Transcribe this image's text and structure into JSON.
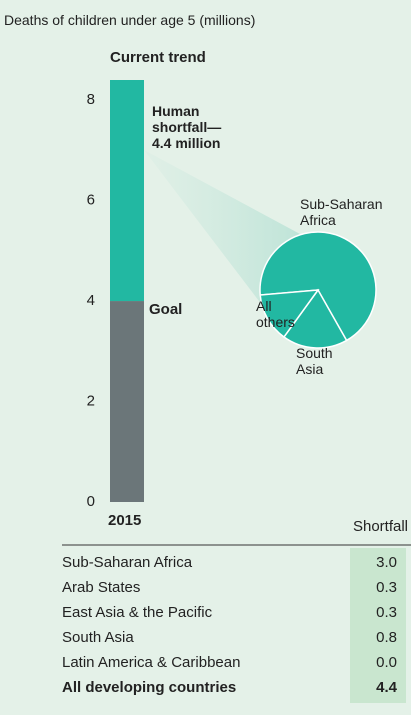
{
  "chart_data": [
    {
      "type": "stacked_bar",
      "ylabel": "Deaths of children under age 5 (millions)",
      "categories": [
        "2015"
      ],
      "series": [
        {
          "name": "Goal",
          "color": "#6b7679",
          "values": [
            4.0
          ]
        },
        {
          "name": "Current trend",
          "color": "#22b8a2",
          "values": [
            4.4
          ]
        }
      ],
      "annotation": "Human shortfall— 4.4 million",
      "ylim": [
        0,
        8.4
      ],
      "yticks": [
        0,
        2,
        4,
        6,
        8
      ]
    },
    {
      "type": "pie",
      "labels": [
        "Sub-Saharan Africa",
        "South Asia",
        "All others"
      ],
      "values": [
        3.0,
        0.8,
        0.6
      ],
      "color": "#22b8a2"
    }
  ],
  "table": {
    "header": "Shortfall",
    "rows": [
      [
        "Sub-Saharan Africa",
        "3.0"
      ],
      [
        "Arab States",
        "0.3"
      ],
      [
        "East Asia & the Pacific",
        "0.3"
      ],
      [
        "South Asia",
        "0.8"
      ],
      [
        "Latin America & Caribbean",
        "0.0"
      ],
      [
        "All developing countries",
        "4.4"
      ]
    ]
  }
}
